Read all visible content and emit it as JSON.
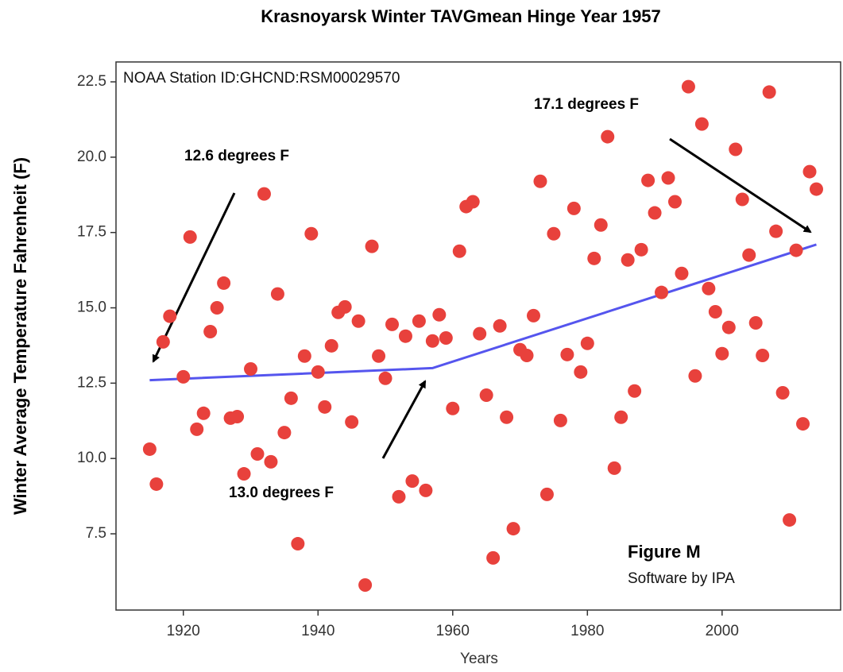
{
  "chart_data": {
    "type": "scatter",
    "title": "Krasnoyarsk Winter TAVGmean Hinge Year 1957",
    "x_label": "Years",
    "y_label": "Winter Average Temperature Fahrenheit (F)",
    "station": "NOAA Station ID:GHCND:RSM00029570",
    "figure_label": "Figure M",
    "credit": "Software by IPA",
    "annotations": [
      "12.6 degrees F",
      "13.0 degrees F",
      "17.1 degrees  F"
    ],
    "color": "#e8413c",
    "x": [
      1915,
      1916,
      1917,
      1918,
      1920,
      1921,
      1922,
      1923,
      1924,
      1925,
      1926,
      1927,
      1928,
      1929,
      1930,
      1931,
      1932,
      1933,
      1934,
      1935,
      1936,
      1937,
      1938,
      1939,
      1940,
      1941,
      1942,
      1943,
      1944,
      1945,
      1946,
      1947,
      1948,
      1949,
      1950,
      1951,
      1952,
      1953,
      1954,
      1955,
      1956,
      1957,
      1958,
      1959,
      1960,
      1961,
      1962,
      1963,
      1964,
      1965,
      1966,
      1967,
      1968,
      1969,
      1970,
      1971,
      1972,
      1973,
      1974,
      1975,
      1976,
      1977,
      1978,
      1979,
      1980,
      1981,
      1982,
      1983,
      1984,
      1985,
      1986,
      1987,
      1988,
      1989,
      1990,
      1991,
      1992,
      1993,
      1994,
      1995,
      1996,
      1997,
      1998,
      1999,
      2000,
      2001,
      2002,
      2003,
      2004,
      2005,
      2006,
      2007,
      2008,
      2009,
      2010,
      2011,
      2012,
      2013,
      2014
    ],
    "values": [
      10.31,
      9.15,
      13.87,
      14.72,
      12.71,
      17.35,
      10.97,
      11.5,
      14.21,
      15.0,
      15.82,
      11.34,
      11.39,
      9.49,
      12.97,
      10.15,
      18.78,
      9.89,
      15.46,
      10.86,
      12.0,
      7.17,
      13.4,
      17.46,
      12.87,
      11.71,
      13.74,
      14.85,
      15.03,
      11.21,
      14.56,
      5.8,
      17.04,
      13.4,
      12.66,
      14.45,
      8.73,
      14.06,
      9.25,
      14.56,
      8.94,
      13.9,
      14.77,
      14.0,
      11.66,
      16.88,
      18.36,
      18.52,
      14.14,
      12.1,
      6.7,
      14.4,
      11.37,
      7.67,
      13.61,
      13.42,
      14.74,
      19.2,
      8.81,
      17.46,
      11.26,
      13.45,
      18.3,
      12.87,
      13.82,
      16.64,
      17.75,
      20.68,
      9.68,
      11.37,
      16.59,
      12.24,
      16.93,
      19.23,
      18.15,
      15.51,
      19.31,
      18.52,
      16.14,
      22.34,
      12.74,
      21.1,
      15.64,
      14.87,
      13.48,
      14.35,
      20.26,
      18.6,
      16.75,
      14.5,
      13.42,
      22.16,
      17.54,
      12.18,
      7.96,
      16.91,
      11.15,
      19.52,
      18.94
    ],
    "fit": {
      "x": [
        1915,
        1957,
        2014
      ],
      "values": [
        12.6,
        13.0,
        17.1
      ],
      "color": "#5555ee"
    },
    "xlim": [
      1910,
      2017.6
    ],
    "ylim": [
      4.97,
      23.16
    ],
    "xticks": [
      1920,
      1940,
      1960,
      1980,
      2000
    ],
    "yticks": [
      7.5,
      {
        "value": 10,
        "label": "10.0"
      },
      12.5,
      {
        "value": 15,
        "label": "15.0"
      },
      17.5,
      {
        "value": 20,
        "label": "20.0"
      },
      22.5
    ]
  }
}
